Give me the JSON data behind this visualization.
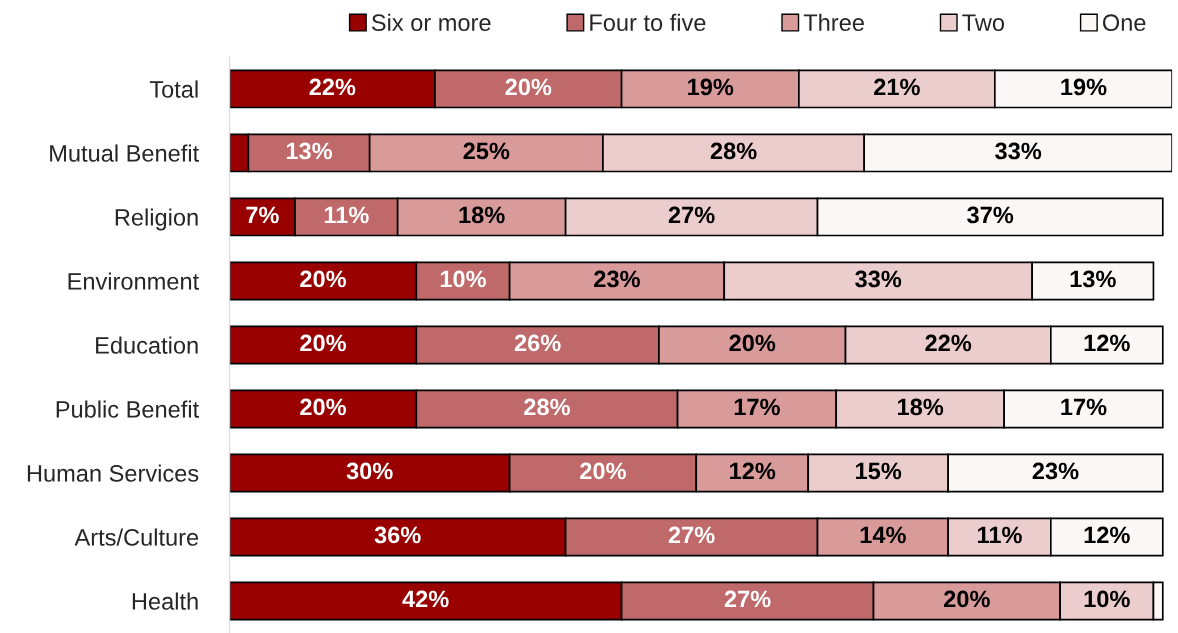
{
  "chart_data": {
    "type": "bar",
    "orientation": "horizontal",
    "stacked": true,
    "legend": "top",
    "grid": false,
    "categories": [
      "Total",
      "Mutual Benefit",
      "Religion",
      "Environment",
      "Education",
      "Public Benefit",
      "Human Services",
      "Arts/Culture",
      "Health"
    ],
    "series": [
      {
        "name": "Six or more",
        "color": "#990000",
        "values": [
          22,
          2,
          7,
          20,
          20,
          20,
          30,
          36,
          42
        ],
        "value_labels": [
          "22%",
          null,
          "7%",
          "20%",
          "20%",
          "20%",
          "30%",
          "36%",
          "42%"
        ]
      },
      {
        "name": "Four to five",
        "color": "#c0696a",
        "values": [
          20,
          13,
          11,
          10,
          26,
          28,
          20,
          27,
          27
        ],
        "value_labels": [
          "20%",
          "13%",
          "11%",
          "10%",
          "26%",
          "28%",
          "20%",
          "27%",
          "27%"
        ]
      },
      {
        "name": "Three",
        "color": "#d99a9a",
        "values": [
          19,
          25,
          18,
          23,
          20,
          17,
          12,
          14,
          20
        ],
        "value_labels": [
          "19%",
          "25%",
          "18%",
          "23%",
          "20%",
          "17%",
          "12%",
          "14%",
          "20%"
        ]
      },
      {
        "name": "Two",
        "color": "#ebcdcd",
        "values": [
          21,
          28,
          27,
          33,
          22,
          18,
          15,
          11,
          10
        ],
        "value_labels": [
          "21%",
          "28%",
          "27%",
          "33%",
          "22%",
          "18%",
          "15%",
          "11%",
          "10%"
        ]
      },
      {
        "name": "One",
        "color": "#fcf7f7",
        "values": [
          19,
          33,
          37,
          13,
          12,
          17,
          23,
          12,
          1
        ],
        "value_labels": [
          "19%",
          "33%",
          "37%",
          "13%",
          "12%",
          "17%",
          "23%",
          "12%",
          null
        ]
      }
    ]
  }
}
